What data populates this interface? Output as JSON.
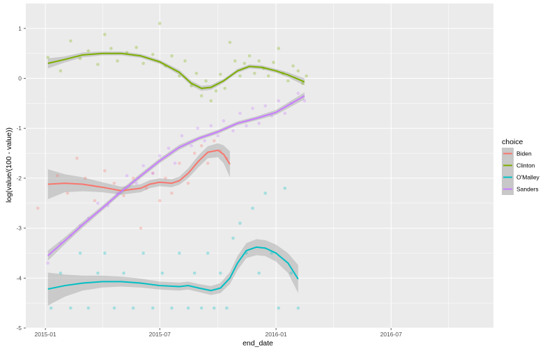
{
  "chart_data": {
    "type": "scatter",
    "title": "",
    "xlabel": "end_date",
    "ylabel": "log(value/(100 - value))",
    "x_ticks": [
      "2015-01",
      "2015-07",
      "2016-01",
      "2016-07"
    ],
    "y_ticks": [
      1,
      0,
      -1,
      -2,
      -3,
      -4,
      -5
    ],
    "xlim": [
      "2014-12-01",
      "2016-12-10"
    ],
    "ylim": [
      -5,
      1.5
    ],
    "grid": true,
    "legend": {
      "title": "choice",
      "placement": "right"
    },
    "smoothing": "loess with shaded confidence band",
    "series": [
      {
        "name": "Biden",
        "color": "#F8766D",
        "smooth": [
          [
            "2015-01-05",
            -2.12
          ],
          [
            "2015-02-01",
            -2.1
          ],
          [
            "2015-03-01",
            -2.12
          ],
          [
            "2015-04-01",
            -2.18
          ],
          [
            "2015-05-01",
            -2.25
          ],
          [
            "2015-06-01",
            -2.2
          ],
          [
            "2015-06-15",
            -2.12
          ],
          [
            "2015-07-01",
            -2.08
          ],
          [
            "2015-07-20",
            -2.1
          ],
          [
            "2015-08-01",
            -2.05
          ],
          [
            "2015-08-15",
            -1.9
          ],
          [
            "2015-09-01",
            -1.65
          ],
          [
            "2015-09-15",
            -1.48
          ],
          [
            "2015-10-01",
            -1.44
          ],
          [
            "2015-10-10",
            -1.52
          ],
          [
            "2015-10-20",
            -1.72
          ]
        ],
        "band": [
          0.3,
          0.18,
          0.14,
          0.1,
          0.08,
          0.08,
          0.08,
          0.08,
          0.08,
          0.08,
          0.1,
          0.12,
          0.12,
          0.14,
          0.18,
          0.26
        ],
        "points": [
          [
            "2014-12-20",
            -2.6
          ],
          [
            "2015-01-20",
            -1.95
          ],
          [
            "2015-02-05",
            -2.3
          ],
          [
            "2015-02-20",
            -1.6
          ],
          [
            "2015-03-05",
            -2.0
          ],
          [
            "2015-03-20",
            -2.45
          ],
          [
            "2015-04-05",
            -1.85
          ],
          [
            "2015-04-20",
            -2.1
          ],
          [
            "2015-05-05",
            -2.35
          ],
          [
            "2015-05-20",
            -2.0
          ],
          [
            "2015-06-01",
            -3.0
          ],
          [
            "2015-06-10",
            -2.2
          ],
          [
            "2015-06-20",
            -1.9
          ],
          [
            "2015-07-01",
            -2.45
          ],
          [
            "2015-07-10",
            -2.0
          ],
          [
            "2015-07-20",
            -2.3
          ],
          [
            "2015-08-01",
            -1.7
          ],
          [
            "2015-08-15",
            -2.1
          ],
          [
            "2015-08-25",
            -1.5
          ],
          [
            "2015-09-05",
            -1.35
          ],
          [
            "2015-09-15",
            -1.7
          ],
          [
            "2015-09-25",
            -1.25
          ],
          [
            "2015-10-05",
            -1.45
          ],
          [
            "2015-10-15",
            -1.6
          ]
        ]
      },
      {
        "name": "Clinton",
        "color": "#7CAE00",
        "smooth": [
          [
            "2015-01-05",
            0.3
          ],
          [
            "2015-02-01",
            0.38
          ],
          [
            "2015-03-01",
            0.47
          ],
          [
            "2015-04-01",
            0.5
          ],
          [
            "2015-05-01",
            0.5
          ],
          [
            "2015-06-01",
            0.45
          ],
          [
            "2015-07-01",
            0.33
          ],
          [
            "2015-08-01",
            0.12
          ],
          [
            "2015-08-20",
            -0.1
          ],
          [
            "2015-09-05",
            -0.2
          ],
          [
            "2015-09-20",
            -0.18
          ],
          [
            "2015-10-10",
            -0.05
          ],
          [
            "2015-11-01",
            0.15
          ],
          [
            "2015-11-20",
            0.24
          ],
          [
            "2015-12-10",
            0.22
          ],
          [
            "2016-01-01",
            0.15
          ],
          [
            "2016-01-20",
            0.07
          ],
          [
            "2016-02-15",
            -0.07
          ]
        ],
        "band": [
          0.1,
          0.06,
          0.05,
          0.04,
          0.04,
          0.04,
          0.04,
          0.05,
          0.05,
          0.05,
          0.05,
          0.04,
          0.04,
          0.04,
          0.04,
          0.04,
          0.05,
          0.07
        ],
        "points": [
          [
            "2015-01-05",
            0.42
          ],
          [
            "2015-01-25",
            0.15
          ],
          [
            "2015-02-10",
            0.75
          ],
          [
            "2015-02-25",
            0.4
          ],
          [
            "2015-03-10",
            0.55
          ],
          [
            "2015-03-25",
            0.28
          ],
          [
            "2015-04-05",
            0.88
          ],
          [
            "2015-04-15",
            0.6
          ],
          [
            "2015-04-25",
            0.35
          ],
          [
            "2015-05-10",
            0.52
          ],
          [
            "2015-05-25",
            0.62
          ],
          [
            "2015-06-05",
            0.3
          ],
          [
            "2015-06-20",
            0.48
          ],
          [
            "2015-07-01",
            1.1
          ],
          [
            "2015-07-10",
            0.25
          ],
          [
            "2015-07-20",
            0.45
          ],
          [
            "2015-08-01",
            0.05
          ],
          [
            "2015-08-10",
            0.35
          ],
          [
            "2015-08-20",
            -0.15
          ],
          [
            "2015-08-28",
            0.1
          ],
          [
            "2015-09-05",
            -0.35
          ],
          [
            "2015-09-12",
            -0.05
          ],
          [
            "2015-09-20",
            -0.45
          ],
          [
            "2015-09-28",
            -0.25
          ],
          [
            "2015-10-05",
            0.08
          ],
          [
            "2015-10-12",
            -0.2
          ],
          [
            "2015-10-20",
            0.72
          ],
          [
            "2015-10-28",
            0.35
          ],
          [
            "2015-11-05",
            0.05
          ],
          [
            "2015-11-12",
            0.3
          ],
          [
            "2015-11-20",
            0.45
          ],
          [
            "2015-11-28",
            0.1
          ],
          [
            "2015-12-05",
            0.35
          ],
          [
            "2015-12-12",
            0.2
          ],
          [
            "2015-12-20",
            0.05
          ],
          [
            "2015-12-28",
            0.32
          ],
          [
            "2016-01-05",
            0.6
          ],
          [
            "2016-01-12",
            0.1
          ],
          [
            "2016-01-20",
            -0.05
          ],
          [
            "2016-01-28",
            0.25
          ],
          [
            "2016-02-05",
            0.15
          ],
          [
            "2016-02-12",
            -0.1
          ],
          [
            "2016-02-18",
            0.05
          ]
        ]
      },
      {
        "name": "O'Malley",
        "color": "#00BFC4",
        "smooth": [
          [
            "2015-01-05",
            -4.22
          ],
          [
            "2015-02-01",
            -4.15
          ],
          [
            "2015-03-01",
            -4.1
          ],
          [
            "2015-04-01",
            -4.07
          ],
          [
            "2015-05-01",
            -4.07
          ],
          [
            "2015-06-01",
            -4.1
          ],
          [
            "2015-07-01",
            -4.15
          ],
          [
            "2015-08-01",
            -4.17
          ],
          [
            "2015-08-15",
            -4.15
          ],
          [
            "2015-09-01",
            -4.2
          ],
          [
            "2015-09-20",
            -4.25
          ],
          [
            "2015-10-05",
            -4.2
          ],
          [
            "2015-10-20",
            -4.0
          ],
          [
            "2015-11-01",
            -3.7
          ],
          [
            "2015-11-15",
            -3.45
          ],
          [
            "2015-12-01",
            -3.38
          ],
          [
            "2015-12-15",
            -3.4
          ],
          [
            "2016-01-01",
            -3.5
          ],
          [
            "2016-01-20",
            -3.7
          ],
          [
            "2016-02-05",
            -4.02
          ]
        ],
        "band": [
          0.33,
          0.22,
          0.15,
          0.12,
          0.1,
          0.09,
          0.08,
          0.08,
          0.08,
          0.08,
          0.09,
          0.1,
          0.12,
          0.14,
          0.15,
          0.16,
          0.16,
          0.17,
          0.2,
          0.28
        ],
        "points": [
          [
            "2015-01-10",
            -4.6
          ],
          [
            "2015-01-25",
            -3.9
          ],
          [
            "2015-02-10",
            -4.6
          ],
          [
            "2015-02-25",
            -3.5
          ],
          [
            "2015-03-10",
            -4.6
          ],
          [
            "2015-03-25",
            -3.9
          ],
          [
            "2015-04-05",
            -3.5
          ],
          [
            "2015-04-20",
            -4.6
          ],
          [
            "2015-05-05",
            -3.9
          ],
          [
            "2015-05-20",
            -4.6
          ],
          [
            "2015-06-05",
            -3.5
          ],
          [
            "2015-06-20",
            -4.6
          ],
          [
            "2015-07-05",
            -3.9
          ],
          [
            "2015-07-20",
            -4.6
          ],
          [
            "2015-08-01",
            -3.5
          ],
          [
            "2015-08-15",
            -4.6
          ],
          [
            "2015-08-25",
            -3.9
          ],
          [
            "2015-09-05",
            -4.6
          ],
          [
            "2015-09-15",
            -3.5
          ],
          [
            "2015-09-25",
            -4.6
          ],
          [
            "2015-10-05",
            -3.9
          ],
          [
            "2015-10-15",
            -4.6
          ],
          [
            "2015-10-25",
            -3.2
          ],
          [
            "2015-11-05",
            -2.9
          ],
          [
            "2015-11-15",
            -3.5
          ],
          [
            "2015-11-25",
            -2.6
          ],
          [
            "2015-12-05",
            -3.9
          ],
          [
            "2015-12-15",
            -2.3
          ],
          [
            "2015-12-25",
            -3.5
          ],
          [
            "2016-01-05",
            -4.6
          ],
          [
            "2016-01-15",
            -2.2
          ],
          [
            "2016-01-25",
            -3.9
          ],
          [
            "2016-02-05",
            -4.6
          ]
        ]
      },
      {
        "name": "Sanders",
        "color": "#C77CFF",
        "smooth": [
          [
            "2015-01-05",
            -3.55
          ],
          [
            "2015-02-01",
            -3.25
          ],
          [
            "2015-03-01",
            -2.93
          ],
          [
            "2015-04-01",
            -2.6
          ],
          [
            "2015-05-01",
            -2.27
          ],
          [
            "2015-06-01",
            -1.95
          ],
          [
            "2015-07-01",
            -1.65
          ],
          [
            "2015-08-01",
            -1.38
          ],
          [
            "2015-09-01",
            -1.2
          ],
          [
            "2015-10-01",
            -1.07
          ],
          [
            "2015-11-01",
            -0.9
          ],
          [
            "2015-12-01",
            -0.8
          ],
          [
            "2016-01-01",
            -0.68
          ],
          [
            "2016-02-15",
            -0.35
          ]
        ],
        "band": [
          0.1,
          0.07,
          0.06,
          0.05,
          0.05,
          0.05,
          0.05,
          0.05,
          0.04,
          0.04,
          0.04,
          0.04,
          0.05,
          0.07
        ],
        "points": [
          [
            "2015-01-05",
            -3.7
          ],
          [
            "2015-01-25",
            -3.3
          ],
          [
            "2015-02-10",
            -3.15
          ],
          [
            "2015-02-25",
            -2.95
          ],
          [
            "2015-03-10",
            -2.8
          ],
          [
            "2015-03-25",
            -2.5
          ],
          [
            "2015-04-10",
            -2.55
          ],
          [
            "2015-04-25",
            -2.3
          ],
          [
            "2015-05-10",
            -1.95
          ],
          [
            "2015-05-25",
            -2.1
          ],
          [
            "2015-06-05",
            -1.75
          ],
          [
            "2015-06-20",
            -1.9
          ],
          [
            "2015-07-01",
            -1.55
          ],
          [
            "2015-07-15",
            -1.4
          ],
          [
            "2015-07-25",
            -1.7
          ],
          [
            "2015-08-05",
            -1.15
          ],
          [
            "2015-08-20",
            -1.35
          ],
          [
            "2015-08-30",
            -1.0
          ],
          [
            "2015-09-10",
            -1.25
          ],
          [
            "2015-09-20",
            -0.95
          ],
          [
            "2015-10-01",
            -1.15
          ],
          [
            "2015-10-10",
            -0.85
          ],
          [
            "2015-10-25",
            -1.05
          ],
          [
            "2015-11-05",
            -0.7
          ],
          [
            "2015-11-15",
            -0.95
          ],
          [
            "2015-11-25",
            -0.6
          ],
          [
            "2015-12-05",
            -0.9
          ],
          [
            "2015-12-15",
            -0.55
          ],
          [
            "2015-12-25",
            -0.75
          ],
          [
            "2016-01-05",
            -0.45
          ],
          [
            "2016-01-15",
            -0.7
          ],
          [
            "2016-01-25",
            -0.5
          ],
          [
            "2016-02-05",
            -0.3
          ],
          [
            "2016-02-15",
            -0.45
          ]
        ]
      }
    ]
  },
  "colors": {
    "panel_background": "#EBEBEB",
    "grid_major": "#FFFFFF",
    "band_fill": "#999999",
    "tick_text": "#4D4D4D"
  }
}
